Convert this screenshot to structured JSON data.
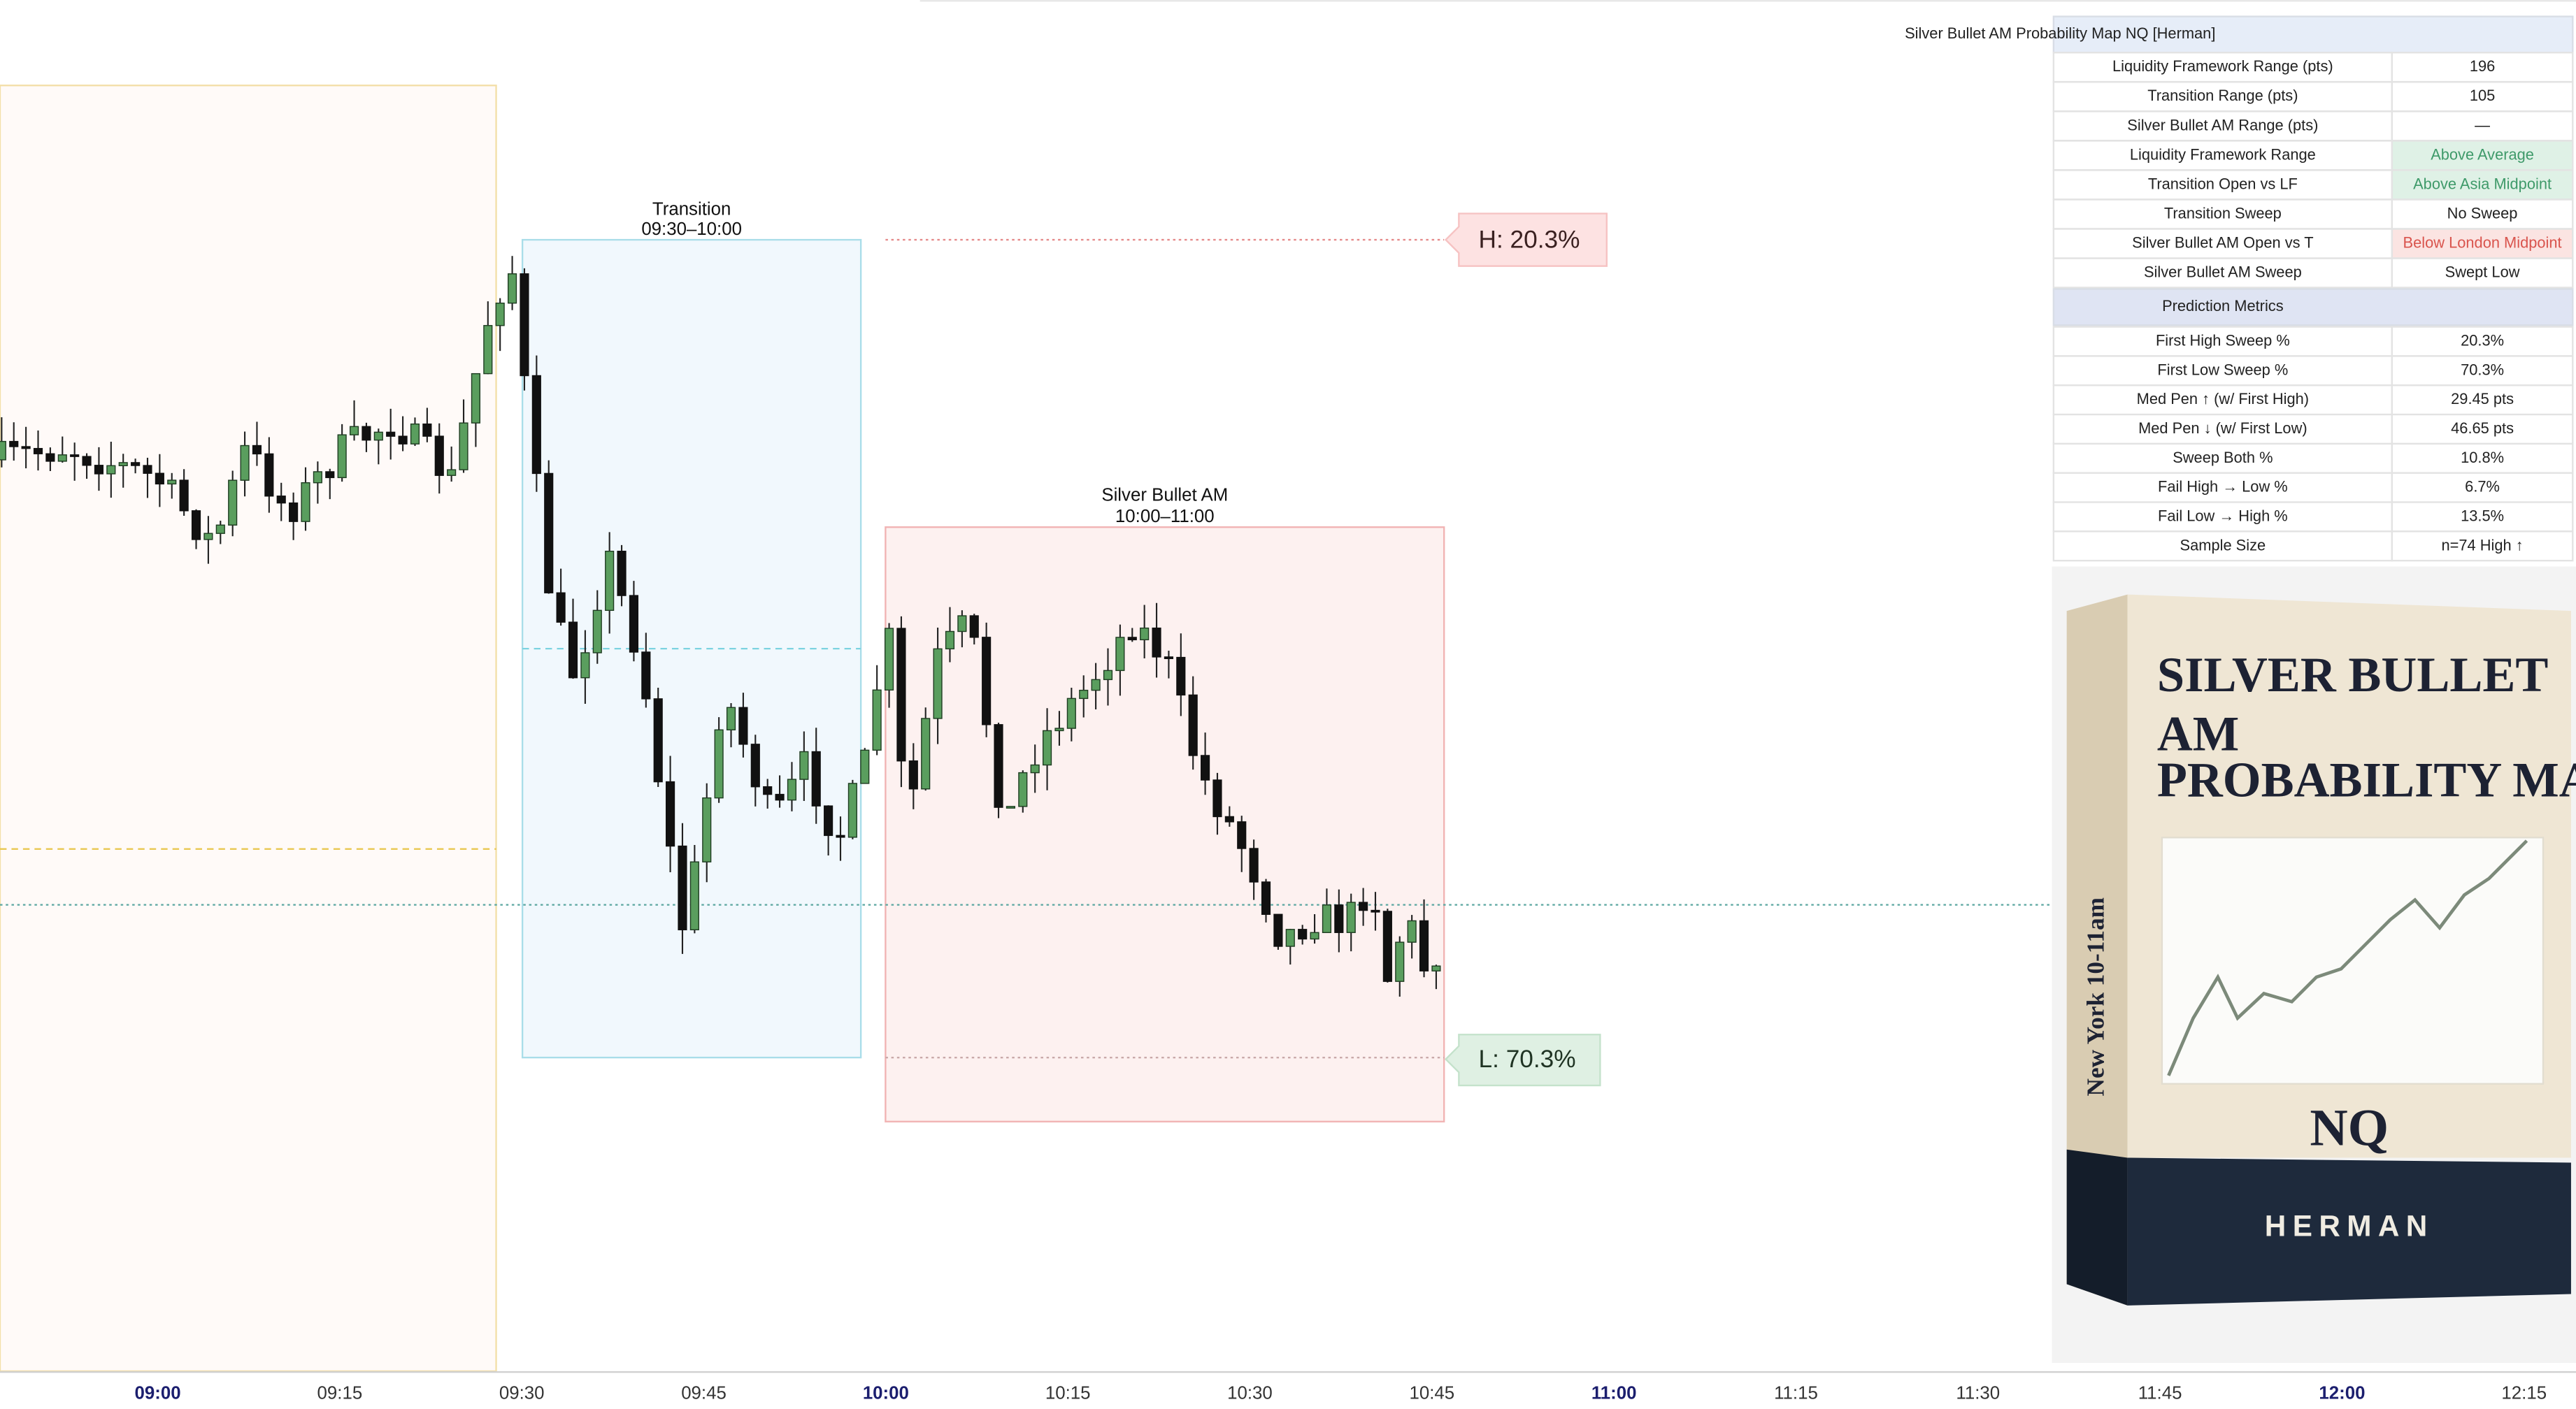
{
  "time_axis": {
    "labels": [
      "09:00",
      "09:15",
      "09:30",
      "09:45",
      "10:00",
      "10:15",
      "10:30",
      "10:45",
      "11:00",
      "11:15",
      "11:30",
      "11:45",
      "12:00",
      "12:15"
    ]
  },
  "sessions": [
    {
      "name": "Transition",
      "time": "09:30–10:00"
    },
    {
      "name": "Silver Bullet AM",
      "time": "10:00–11:00"
    }
  ],
  "targets": {
    "high": "H: 20.3%",
    "low": "L: 70.3%"
  },
  "table": {
    "title": "Silver Bullet AM Probability Map NQ [Herman]",
    "rows": [
      [
        "Liquidity Framework Range (pts)",
        "196"
      ],
      [
        "Transition Range (pts)",
        "105"
      ],
      [
        "Silver Bullet AM Range (pts)",
        "—"
      ],
      [
        "Liquidity Framework Range",
        "Above Average"
      ],
      [
        "Transition Open vs LF",
        "Above Asia Midpoint"
      ],
      [
        "Transition Sweep",
        "No Sweep"
      ],
      [
        "Silver Bullet AM Open vs T",
        "Below London Midpoint"
      ],
      [
        "Silver Bullet AM Sweep",
        "Swept Low"
      ]
    ],
    "section": "Prediction Metrics",
    "metrics": [
      [
        "First High Sweep %",
        "20.3%"
      ],
      [
        "First Low Sweep %",
        "70.3%"
      ],
      [
        "Med Pen ↑ (w/ First High)",
        "29.45 pts"
      ],
      [
        "Med Pen ↓ (w/ First Low)",
        "46.65 pts"
      ],
      [
        "Sweep Both %",
        "10.8%"
      ],
      [
        "Fail High → Low %",
        "6.7%"
      ],
      [
        "Fail Low → High %",
        "13.5%"
      ],
      [
        "Sample Size",
        "n=74 High ↑"
      ]
    ]
  },
  "product": {
    "title_lines": [
      "SILVER BULLET",
      "AM",
      "PROBABILITY MAP"
    ],
    "subtitle": "New York 10-11am",
    "symbol": "NQ",
    "author": "HERMAN"
  }
}
